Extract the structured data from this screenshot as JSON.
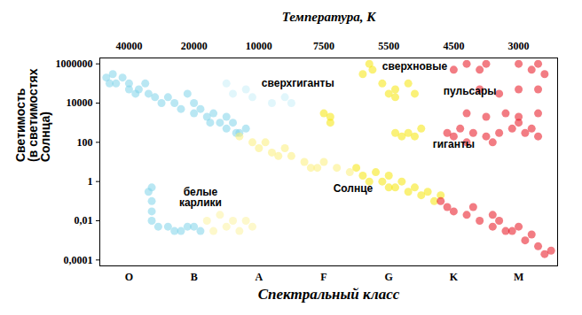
{
  "chart_data": {
    "type": "scatter",
    "log": "y",
    "xlabel": "Спектральный класс",
    "x2label": "Температура, К",
    "ylabel": "Светимость\n(в светимостях\nСолнца)",
    "xlim": [
      -0.45,
      6.6
    ],
    "xticks": [
      {
        "value": 0,
        "label": "O"
      },
      {
        "value": 1,
        "label": "B"
      },
      {
        "value": 2,
        "label": "A"
      },
      {
        "value": 3,
        "label": "F"
      },
      {
        "value": 4,
        "label": "G"
      },
      {
        "value": 5,
        "label": "K"
      },
      {
        "value": 6,
        "label": "M"
      }
    ],
    "x2ticks": [
      {
        "value": 0,
        "label": "40000"
      },
      {
        "value": 1,
        "label": "20000"
      },
      {
        "value": 2,
        "label": "10000"
      },
      {
        "value": 3,
        "label": "7500"
      },
      {
        "value": 4,
        "label": "5500"
      },
      {
        "value": 5,
        "label": "4500"
      },
      {
        "value": 6,
        "label": "3000"
      }
    ],
    "ylim": [
      5e-05,
      2000000
    ],
    "yticks": [
      1000000,
      10000,
      100,
      1,
      {
        "value": 0.01,
        "label": "0,01"
      },
      {
        "value": 0.0001,
        "label": "0,0001"
      }
    ],
    "series": [
      {
        "color": "#7fd3ea",
        "x": [
          -0.35,
          -0.25,
          -0.2,
          -0.1,
          0,
          0,
          0.1,
          0.15,
          0.3,
          0.4,
          0.6,
          0.7,
          0.8,
          0.9,
          1.0,
          1.0,
          1.1,
          1.2,
          1.3,
          1.4,
          1.5,
          1.6,
          1.7,
          1.8,
          1.5,
          0.5,
          -0.3,
          0.25,
          1.25,
          1.65
        ],
        "y": [
          200000,
          300000,
          100000,
          200000,
          100000,
          50000,
          30000,
          50000,
          30000,
          20000,
          20000,
          10000,
          5000,
          30000,
          10000,
          3000,
          5000,
          2000,
          3000,
          1000,
          500,
          1000,
          300,
          500,
          2000,
          10000,
          100000,
          100000,
          1000,
          300
        ]
      },
      {
        "color": "#7fd3ea",
        "x": [
          0.3,
          0.35,
          0.35,
          0.35,
          0.35,
          0.45,
          0.6,
          0.8,
          1.0,
          1.1,
          0.7,
          0.9
        ],
        "y": [
          0.3,
          0.1,
          0.03,
          0.01,
          0.5,
          0.005,
          0.005,
          0.003,
          0.005,
          0.003,
          0.003,
          0.005
        ]
      },
      {
        "color": "#c9eef7",
        "x": [
          1.5,
          1.6,
          1.8,
          1.9,
          2.2,
          2.4,
          2.5
        ],
        "y": [
          100000,
          30000,
          50000,
          20000,
          10000,
          20000,
          10000
        ]
      },
      {
        "color": "#fbf2a0",
        "x": [
          1.2,
          1.4,
          1.5,
          1.6,
          1.7,
          1.8,
          1.3,
          1.9
        ],
        "y": [
          0.01,
          0.02,
          0.005,
          0.01,
          0.003,
          0.01,
          0.003,
          0.005
        ]
      },
      {
        "color": "#fcee7a",
        "x": [
          1.7,
          1.9,
          2.0,
          2.1,
          2.2,
          2.4,
          2.5,
          2.7,
          2.9,
          3.0,
          3.2,
          3.4,
          2.3,
          2.8
        ],
        "y": [
          200,
          100,
          50,
          100,
          30,
          50,
          20,
          10,
          5,
          10,
          5,
          3,
          20,
          5
        ]
      },
      {
        "color": "#f5e50a",
        "x": [
          3.5,
          3.6,
          3.8,
          3.9,
          4.0,
          4.1,
          4.2,
          4.3,
          4.4,
          4.0,
          3.7,
          4.5,
          4.6,
          4.7,
          4.8,
          3.0,
          3.1,
          3.1,
          3.6,
          3.7,
          3.75,
          3.9,
          4.0,
          4.1,
          4.3,
          4.4,
          4.1,
          4.1,
          4.2,
          4.3,
          4.4,
          4.5
        ],
        "y": [
          5,
          2,
          3,
          1,
          2,
          0.5,
          1,
          0.3,
          0.5,
          0.5,
          1,
          0.2,
          0.3,
          0.1,
          0.2,
          3000,
          1000,
          2000,
          300000,
          1000000,
          500000,
          100000,
          30000,
          50000,
          100000,
          30000,
          20000,
          300,
          200,
          300,
          200,
          500
        ]
      },
      {
        "color": "#e8101e",
        "x": [
          4.9,
          5.0,
          5.1,
          5.3,
          5.5,
          5.7,
          5.9,
          6.1,
          6.3,
          5.2,
          5.6,
          6.0,
          6.2,
          5.2,
          5.5,
          5.8,
          6.0,
          6.3,
          5.0,
          5.2,
          5.4,
          5.5,
          6.0,
          6.2,
          6.3,
          6.4,
          5.4,
          5.7,
          6.0,
          6.3,
          4.8,
          4.9,
          5.0,
          5.2,
          5.4,
          5.6,
          5.7,
          5.9,
          6.0,
          6.1,
          6.2,
          6.3,
          6.4,
          6.5,
          5.3,
          5.6,
          5.8
        ],
        "y": [
          300,
          200,
          500,
          300,
          200,
          300,
          500,
          300,
          200,
          100,
          100,
          1000,
          500,
          3000,
          2000,
          3000,
          2000,
          3000,
          500000,
          1000000,
          500000,
          1000000,
          1000000,
          500000,
          1000000,
          300000,
          50000,
          30000,
          50000,
          50000,
          0.1,
          0.05,
          0.03,
          0.02,
          0.01,
          0.005,
          0.01,
          0.003,
          0.005,
          0.001,
          0.002,
          0.0005,
          0.0002,
          0.0003,
          0.05,
          0.02,
          0.003
        ]
      }
    ],
    "annotations": [
      {
        "text": "сверхгиганты",
        "x": 2.6,
        "y": 100000
      },
      {
        "text": "сверхновые",
        "x": 4.4,
        "y": 700000
      },
      {
        "text": "пульсары",
        "x": 5.25,
        "y": 40000
      },
      {
        "text": "гиганты",
        "x": 5.0,
        "y": 80
      },
      {
        "text": "Солнце",
        "x": 3.45,
        "y": 0.45
      },
      {
        "text": "белые\nкарлики",
        "x": 1.1,
        "y": 0.15
      }
    ]
  }
}
